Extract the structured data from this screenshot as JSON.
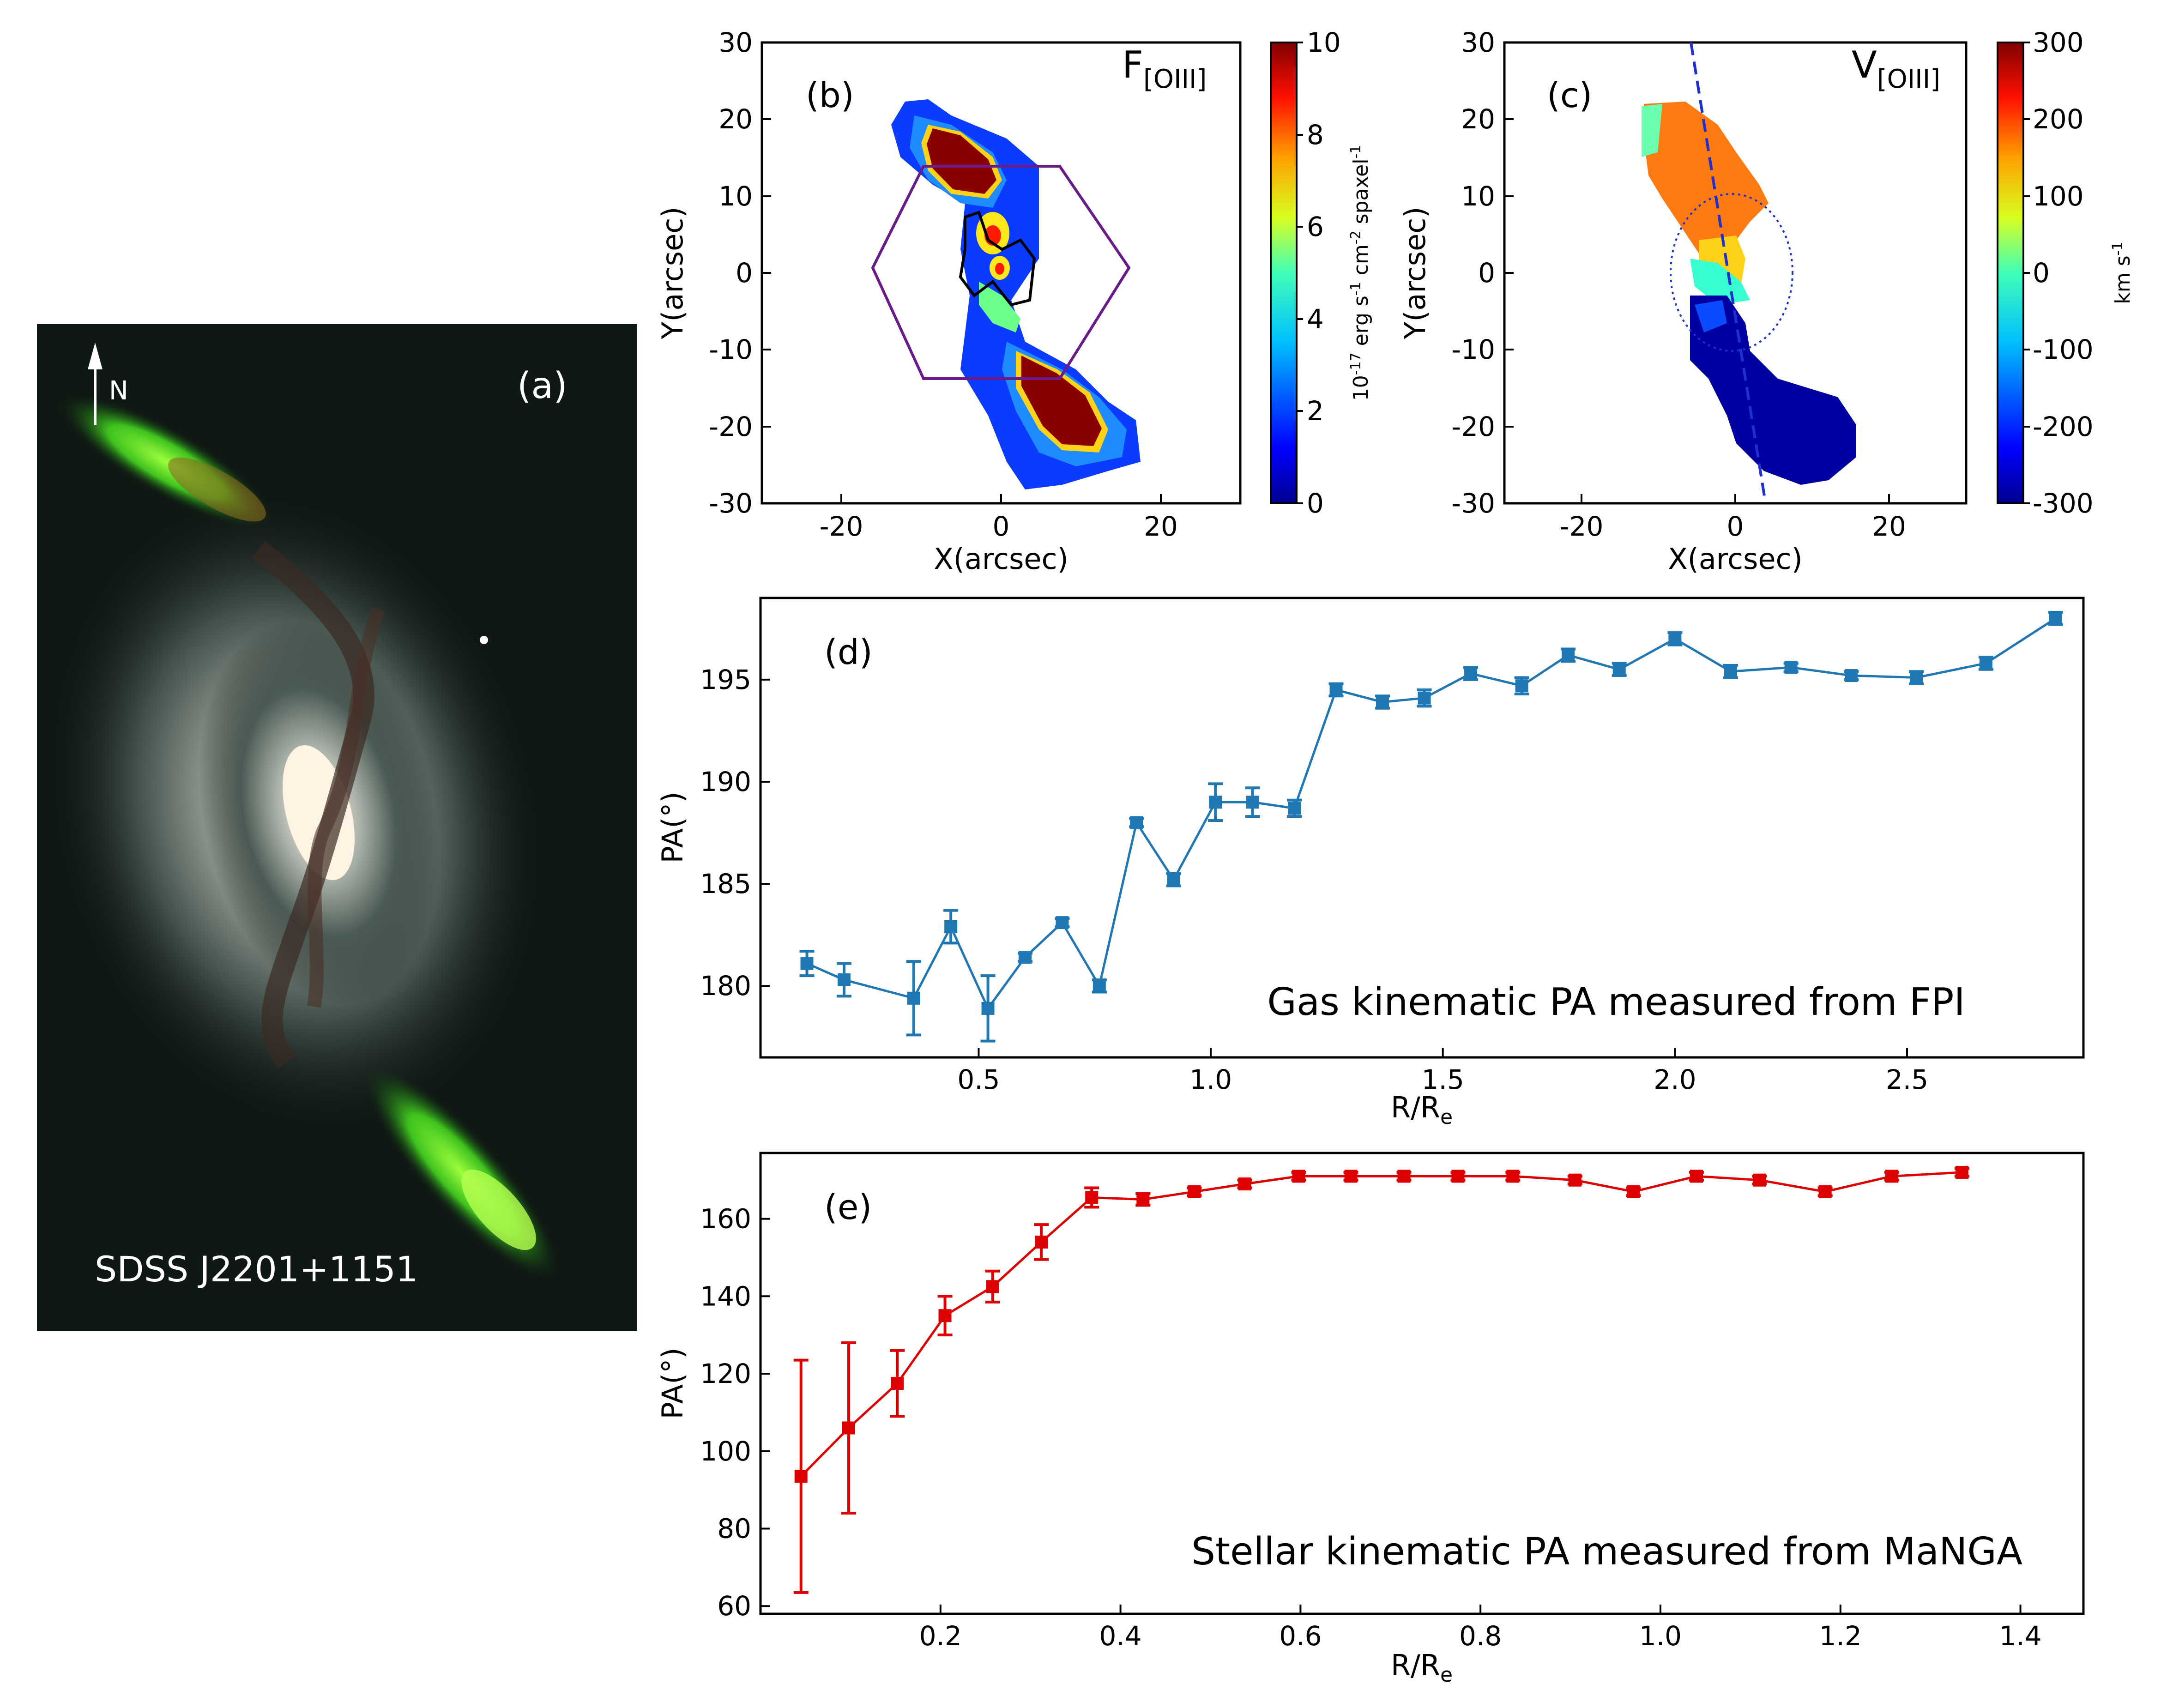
{
  "figure": {
    "panel_a": {
      "label": "(a)",
      "object_name": "SDSS J2201+1151",
      "north_label": "N"
    },
    "colors": {
      "gas": "#1f77b4",
      "stellar": "#dd0000",
      "frame": "#000000",
      "hexagon": "#6a1b8a",
      "kin_axis": "#1f2fd0"
    }
  },
  "chart_data": [
    {
      "id": "b",
      "type": "heatmap",
      "panel_label": "(b)",
      "title_main": "F",
      "title_sub": "[OIII]",
      "xlabel": "X(arcsec)",
      "ylabel": "Y(arcsec)",
      "xlim": [
        -30,
        30
      ],
      "ylim": [
        -30,
        30
      ],
      "xticks": [
        "-20",
        "0",
        "20"
      ],
      "yticks": [
        "30",
        "20",
        "10",
        "0",
        "-10",
        "-20",
        "-30"
      ],
      "colorbar": {
        "range": [
          0,
          10
        ],
        "ticks": [
          "10",
          "8",
          "6",
          "4",
          "2",
          "0"
        ],
        "label_base": "10",
        "label_exp": "-17",
        "label_rest": " erg s",
        "label_exp2": "-1",
        "label_rest2": " cm",
        "label_exp3": "-2",
        "label_rest3": " spaxel",
        "label_exp4": "-1"
      }
    },
    {
      "id": "c",
      "type": "heatmap",
      "panel_label": "(c)",
      "title_main": "V",
      "title_sub": "[OIII]",
      "xlabel": "X(arcsec)",
      "ylabel": "Y(arcsec)",
      "xlim": [
        -30,
        30
      ],
      "ylim": [
        -30,
        30
      ],
      "xticks": [
        "-20",
        "0",
        "20"
      ],
      "yticks": [
        "30",
        "20",
        "10",
        "0",
        "-10",
        "-20",
        "-30"
      ],
      "colorbar": {
        "range": [
          -300,
          300
        ],
        "ticks": [
          "300",
          "200",
          "100",
          "0",
          "-100",
          "-200",
          "-300"
        ],
        "label_main": "km s",
        "label_exp": "-1"
      }
    },
    {
      "id": "d",
      "type": "line",
      "panel_label": "(d)",
      "annotation": "Gas kinematic PA measured from FPI",
      "xlabel_main": "R/R",
      "xlabel_sub": "e",
      "ylabel": "PA(°)",
      "xlim": [
        0.03,
        2.88
      ],
      "ylim": [
        176.5,
        199.0
      ],
      "xticks": [
        0.5,
        1.0,
        1.5,
        2.0,
        2.5
      ],
      "xtick_labels": [
        "0.5",
        "1.0",
        "1.5",
        "2.0",
        "2.5"
      ],
      "yticks": [
        180,
        185,
        190,
        195
      ],
      "ytick_labels": [
        "180",
        "185",
        "190",
        "195"
      ],
      "series": [
        {
          "name": "Gas kinematic PA",
          "x": [
            0.13,
            0.21,
            0.36,
            0.44,
            0.52,
            0.6,
            0.68,
            0.76,
            0.84,
            0.92,
            1.01,
            1.09,
            1.18,
            1.27,
            1.37,
            1.46,
            1.56,
            1.67,
            1.77,
            1.88,
            2.0,
            2.12,
            2.25,
            2.38,
            2.52,
            2.67,
            2.82
          ],
          "values": [
            181.1,
            180.3,
            179.4,
            182.9,
            178.9,
            181.4,
            183.1,
            180.0,
            188.0,
            185.2,
            189.0,
            189.0,
            188.7,
            194.5,
            193.9,
            194.1,
            195.3,
            194.7,
            196.2,
            195.5,
            197.0,
            195.4,
            195.6,
            195.2,
            195.1,
            195.8,
            198.0
          ],
          "errors": [
            0.6,
            0.8,
            1.8,
            0.8,
            1.6,
            0.2,
            0.2,
            0.3,
            0.2,
            0.3,
            0.9,
            0.7,
            0.4,
            0.3,
            0.3,
            0.4,
            0.3,
            0.4,
            0.3,
            0.3,
            0.3,
            0.3,
            0.2,
            0.2,
            0.3,
            0.3,
            0.3
          ]
        }
      ]
    },
    {
      "id": "e",
      "type": "line",
      "panel_label": "(e)",
      "annotation": "Stellar kinematic PA measured from MaNGA",
      "xlabel_main": "R/R",
      "xlabel_sub": "e",
      "ylabel": "PA(°)",
      "xlim": [
        0.0,
        1.47
      ],
      "ylim": [
        58,
        177
      ],
      "xticks": [
        0.2,
        0.4,
        0.6,
        0.8,
        1.0,
        1.2,
        1.4
      ],
      "xtick_labels": [
        "0.2",
        "0.4",
        "0.6",
        "0.8",
        "1.0",
        "1.2",
        "1.4"
      ],
      "yticks": [
        60,
        80,
        100,
        120,
        140,
        160
      ],
      "ytick_labels": [
        "60",
        "80",
        "100",
        "120",
        "140",
        "160"
      ],
      "series": [
        {
          "name": "Stellar kinematic PA",
          "x": [
            0.045,
            0.098,
            0.152,
            0.205,
            0.258,
            0.312,
            0.368,
            0.425,
            0.482,
            0.538,
            0.598,
            0.656,
            0.715,
            0.775,
            0.836,
            0.905,
            0.97,
            1.04,
            1.11,
            1.183,
            1.257,
            1.335
          ],
          "values": [
            93.5,
            106.0,
            117.5,
            135.0,
            142.5,
            154.0,
            165.5,
            165.0,
            167.0,
            169.0,
            171.0,
            171.0,
            171.0,
            171.0,
            171.0,
            170.0,
            167.0,
            171.0,
            170.0,
            167.0,
            171.0,
            172.0
          ],
          "errors": [
            30.0,
            22.0,
            8.5,
            5.0,
            4.0,
            4.5,
            2.5,
            1.5,
            1.0,
            1.0,
            1.0,
            1.0,
            1.0,
            1.0,
            1.0,
            1.0,
            1.0,
            1.0,
            1.0,
            1.0,
            1.0,
            1.0
          ]
        }
      ]
    }
  ]
}
